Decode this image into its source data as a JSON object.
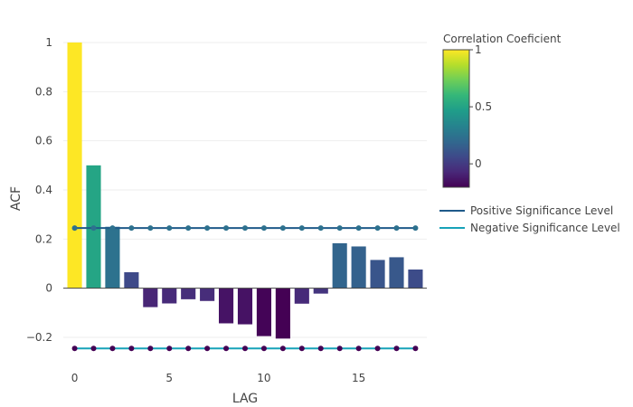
{
  "chart_data": {
    "type": "bar",
    "xlabel": "LAG",
    "ylabel": "ACF",
    "xlim": [
      -0.6,
      18.6
    ],
    "ylim": [
      -0.27,
      1.0
    ],
    "x_ticks": [
      0,
      5,
      10,
      15
    ],
    "y_ticks": [
      -0.2,
      0,
      0.2,
      0.4,
      0.6,
      0.8,
      1
    ],
    "y_tick_labels": [
      "−0.2",
      "0",
      "0.2",
      "0.4",
      "0.6",
      "0.8",
      "1"
    ],
    "grid": true,
    "lags": [
      0,
      1,
      2,
      3,
      4,
      5,
      6,
      7,
      8,
      9,
      10,
      11,
      12,
      13,
      14,
      15,
      16,
      17,
      18
    ],
    "values": [
      1.0,
      0.5,
      0.25,
      0.065,
      -0.077,
      -0.062,
      -0.045,
      -0.052,
      -0.143,
      -0.147,
      -0.195,
      -0.205,
      -0.063,
      -0.022,
      0.183,
      0.17,
      0.115,
      0.126,
      0.076
    ],
    "series": [
      {
        "name": "Positive Significance Level",
        "color": "#1f5a8a",
        "value": 0.245
      },
      {
        "name": "Negative Significance Level",
        "color": "#17a2b8",
        "value": -0.245
      }
    ],
    "colorscale": {
      "name": "viridis",
      "title": "Correlation Coeficient",
      "range": [
        -0.205,
        1.0
      ],
      "ticks": [
        0,
        0.5,
        1
      ],
      "tick_labels": [
        "0",
        "0.5",
        "1"
      ]
    },
    "legend_position": "right"
  }
}
